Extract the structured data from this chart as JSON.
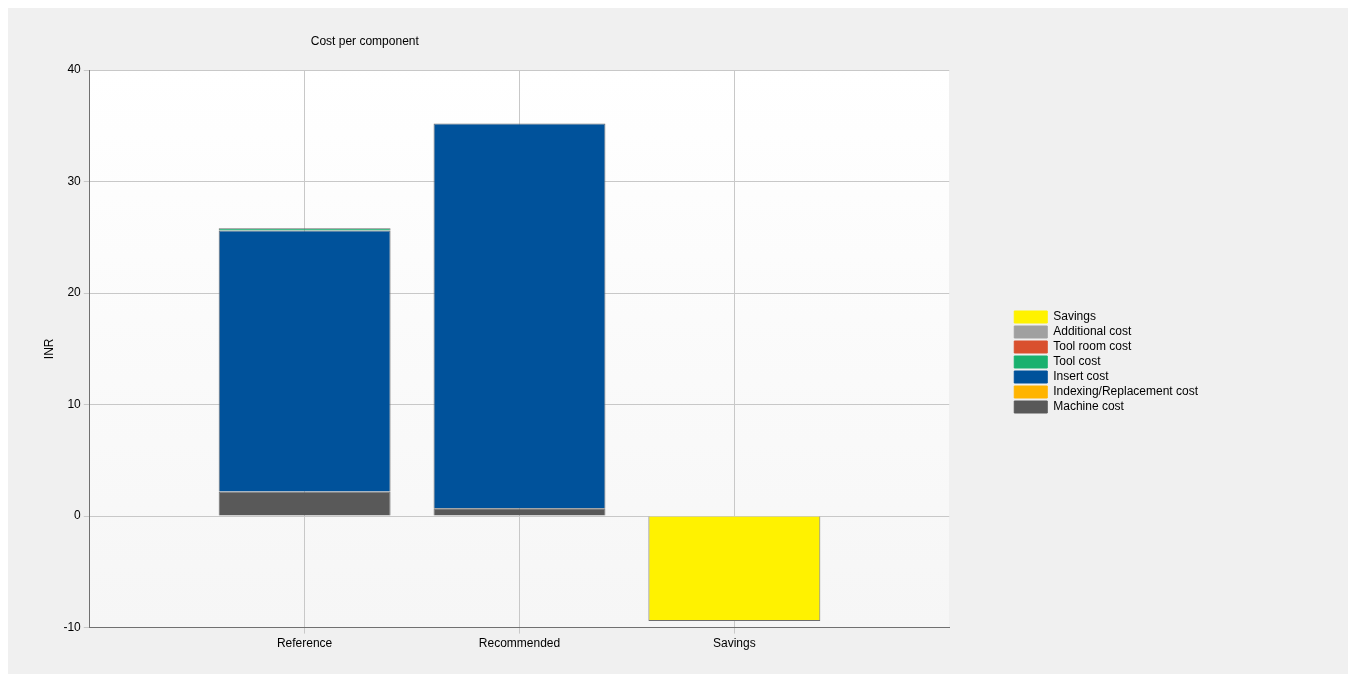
{
  "chart_data": {
    "type": "bar",
    "title": "Cost per component",
    "ylabel": "INR",
    "categories": [
      "Reference",
      "Recommended",
      "Savings"
    ],
    "stacked": true,
    "ylim": [
      -10,
      40
    ],
    "yticks": [
      -10,
      0,
      10,
      20,
      30,
      40
    ],
    "grid": true,
    "legend": "right",
    "series": [
      {
        "name": "Machine cost",
        "color": "#595959",
        "values": [
          2.2,
          0.7,
          null
        ]
      },
      {
        "name": "Indexing/Replacement cost",
        "color": "#ffb400",
        "values": [
          0,
          0,
          null
        ]
      },
      {
        "name": "Insert cost",
        "color": "#00529b",
        "values": [
          23.4,
          34.5,
          null
        ]
      },
      {
        "name": "Tool cost",
        "color": "#19b16e",
        "values": [
          0.2,
          0,
          null
        ]
      },
      {
        "name": "Tool room cost",
        "color": "#d9502e",
        "values": [
          0,
          0,
          null
        ]
      },
      {
        "name": "Additional cost",
        "color": "#a0a0a0",
        "values": [
          0,
          0,
          null
        ]
      },
      {
        "name": "Savings",
        "color": "#fff200",
        "values": [
          null,
          null,
          -9.4
        ]
      }
    ]
  }
}
